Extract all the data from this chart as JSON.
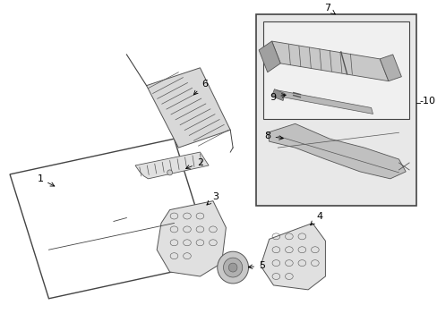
{
  "background_color": "#ffffff",
  "fig_width": 4.89,
  "fig_height": 3.6,
  "dpi": 100,
  "line_color": "#444444",
  "label_fontsize": 8,
  "box_bg": "#e8e8e8",
  "inner_box_bg": "#f0f0f0",
  "part_fill": "#e0e0e0",
  "part_edge": "#555555"
}
